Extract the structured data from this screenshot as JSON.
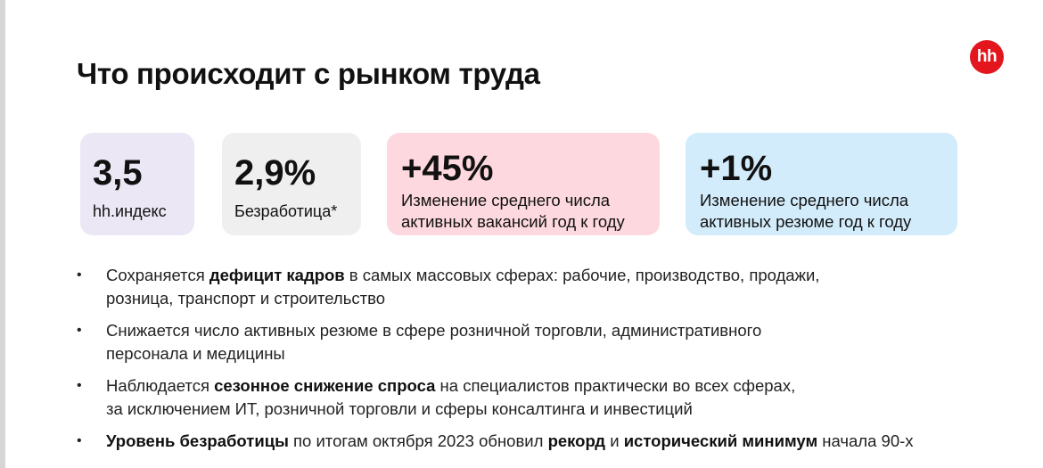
{
  "header": {
    "title": "Что происходит с рынком труда",
    "logo_text": "hh",
    "logo_color": "#e3161d"
  },
  "stats": [
    {
      "value": "3,5",
      "caption": "hh.индекс",
      "color": "#ebe7f5"
    },
    {
      "value": "2,9%",
      "caption": "Безработица*",
      "color": "#efefef"
    },
    {
      "value": "+45%",
      "caption_line1": "Изменение среднего числа",
      "caption_line2": "активных вакансий год к году",
      "color": "#fdd8de"
    },
    {
      "value": "+1%",
      "caption_line1": "Изменение среднего числа",
      "caption_line2": "активных резюме год к году",
      "color": "#d3ecfb"
    }
  ],
  "bullets": {
    "marker": "•",
    "b1": {
      "t1": "Сохраняется ",
      "b1": "дефицит кадров",
      "t2": " в самых массовых сферах: рабочие, производство, продажи,",
      "t3": "розница, транспорт и строительство"
    },
    "b2": {
      "t1": "Снижается число активных резюме в сфере розничной торговли, административного",
      "t2": "персонала и медицины"
    },
    "b3": {
      "t1": "Наблюдается ",
      "b1": "сезонное снижение спроса",
      "t2": " на специалистов практически во всех сферах,",
      "t3": "за исключением ИТ, розничной торговли и сферы консалтинга и инвестиций"
    },
    "b4": {
      "b1": "Уровень безработицы",
      "t1": " по итогам октября 2023 обновил ",
      "b2": "рекорд",
      "t2": " и ",
      "b3": "исторический минимум",
      "t3": " начала 90-х"
    }
  }
}
